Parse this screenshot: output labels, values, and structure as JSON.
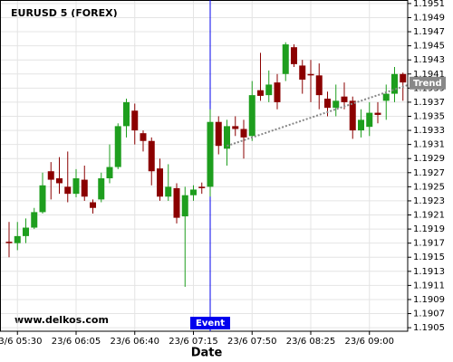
{
  "chart_data": {
    "type": "candlestick",
    "title": "EURUSD 5 (FOREX)",
    "watermark": "www.delkos.com",
    "x_label": "Date",
    "categories": [
      null,
      "23/6 05:30",
      null,
      null,
      null,
      null,
      null,
      null,
      "23/6 06:05",
      null,
      null,
      null,
      null,
      null,
      null,
      "23/6 06:40",
      null,
      null,
      null,
      null,
      null,
      null,
      "23/6 07:15",
      null,
      null,
      null,
      null,
      null,
      null,
      "23/6 07:50",
      null,
      null,
      null,
      null,
      null,
      null,
      "23/6 08:25",
      null,
      null,
      null,
      null,
      null,
      null,
      "23/6 09:00",
      null,
      null,
      null,
      null
    ],
    "open": [
      1.19172,
      1.1917,
      1.1918,
      1.19192,
      1.19214,
      1.19272,
      1.19262,
      1.1925,
      1.1924,
      1.1926,
      1.19228,
      1.19232,
      1.19262,
      1.19278,
      1.19336,
      1.19358,
      1.19326,
      1.19315,
      1.19276,
      1.19236,
      1.19248,
      1.19208,
      1.19238,
      1.1925,
      1.1925,
      1.19342,
      1.19304,
      1.19336,
      1.19332,
      1.19322,
      1.19387,
      1.1938,
      1.19398,
      1.1941,
      1.19448,
      1.19422,
      1.1941,
      1.19408,
      1.19375,
      1.19362,
      1.19378,
      1.19372,
      1.1933,
      1.19335,
      1.19355,
      1.19372,
      1.19382,
      1.1941
    ],
    "high": [
      1.192,
      1.192,
      1.19205,
      1.1922,
      1.1927,
      1.19285,
      1.19292,
      1.193,
      1.19275,
      1.1928,
      1.19232,
      1.1927,
      1.1931,
      1.1934,
      1.19375,
      1.19368,
      1.1933,
      1.1932,
      1.1929,
      1.19282,
      1.19255,
      1.1925,
      1.19252,
      1.19256,
      1.1936,
      1.1935,
      1.19345,
      1.1935,
      1.19345,
      1.194,
      1.1944,
      1.19415,
      1.1941,
      1.19455,
      1.19452,
      1.1943,
      1.1943,
      1.19425,
      1.19385,
      1.19395,
      1.19398,
      1.19378,
      1.1936,
      1.1937,
      1.1937,
      1.19395,
      1.1942,
      1.19412
    ],
    "low": [
      1.1915,
      1.1916,
      1.1917,
      1.1919,
      1.19212,
      1.19232,
      1.1924,
      1.19228,
      1.19235,
      1.1923,
      1.19212,
      1.19228,
      1.19255,
      1.19275,
      1.1932,
      1.1931,
      1.193,
      1.19252,
      1.1923,
      1.1923,
      1.19198,
      1.19108,
      1.1923,
      1.1924,
      1.19236,
      1.19296,
      1.1928,
      1.19322,
      1.1929,
      1.19315,
      1.19372,
      1.1937,
      1.1936,
      1.194,
      1.1942,
      1.19382,
      1.1937,
      1.1936,
      1.1935,
      1.1935,
      1.1936,
      1.19318,
      1.1932,
      1.19322,
      1.1934,
      1.19345,
      1.1937,
      1.19372
    ],
    "close": [
      1.1917,
      1.1918,
      1.19192,
      1.19214,
      1.19252,
      1.1926,
      1.19255,
      1.1924,
      1.19262,
      1.19236,
      1.1922,
      1.19262,
      1.19278,
      1.19336,
      1.1937,
      1.1933,
      1.19315,
      1.19272,
      1.19236,
      1.1925,
      1.19206,
      1.19238,
      1.19246,
      1.19248,
      1.19342,
      1.19308,
      1.19336,
      1.19332,
      1.1932,
      1.1938,
      1.19379,
      1.19395,
      1.1937,
      1.19452,
      1.19424,
      1.19402,
      1.19408,
      1.1938,
      1.19362,
      1.19372,
      1.1937,
      1.1933,
      1.19345,
      1.19355,
      1.19352,
      1.19382,
      1.1941,
      1.19398
    ],
    "up_color": "#1e9e1e",
    "down_color": "#8b0000",
    "ylim": [
      1.19045,
      1.19515
    ],
    "yticks": [
      1.1905,
      1.1907,
      1.1909,
      1.1911,
      1.1913,
      1.1915,
      1.1917,
      1.1919,
      1.1921,
      1.1923,
      1.1925,
      1.1927,
      1.1929,
      1.1931,
      1.1933,
      1.1935,
      1.1937,
      1.1939,
      1.1941,
      1.1943,
      1.1945,
      1.1947,
      1.1949,
      1.1951
    ],
    "grid": true,
    "event": {
      "label": "Event",
      "index": 24,
      "color": "#0000ee"
    },
    "trend": {
      "label": "Trend",
      "start_index": 26,
      "start_value": 1.19308,
      "end_index": 47,
      "end_value": 1.19392,
      "color": "#888888"
    }
  }
}
